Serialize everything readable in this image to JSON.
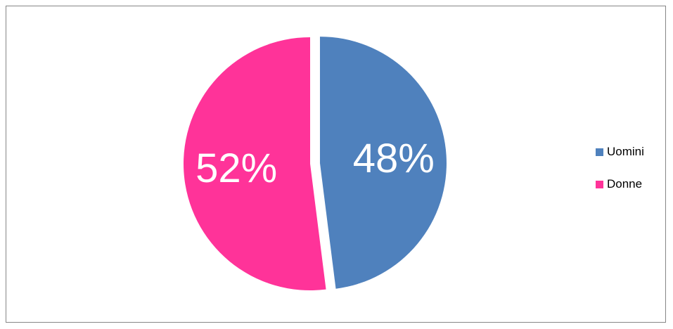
{
  "chart_data": {
    "type": "pie",
    "title": "",
    "slices": [
      {
        "label": "Uomini",
        "value": 48,
        "display": "48%",
        "color": "#4F81BD",
        "exploded": true
      },
      {
        "label": "Donne",
        "value": 52,
        "display": "52%",
        "color": "#FF3399",
        "exploded": false
      }
    ],
    "legend": {
      "placement": "right"
    },
    "label_color": "#FFFFFF"
  }
}
